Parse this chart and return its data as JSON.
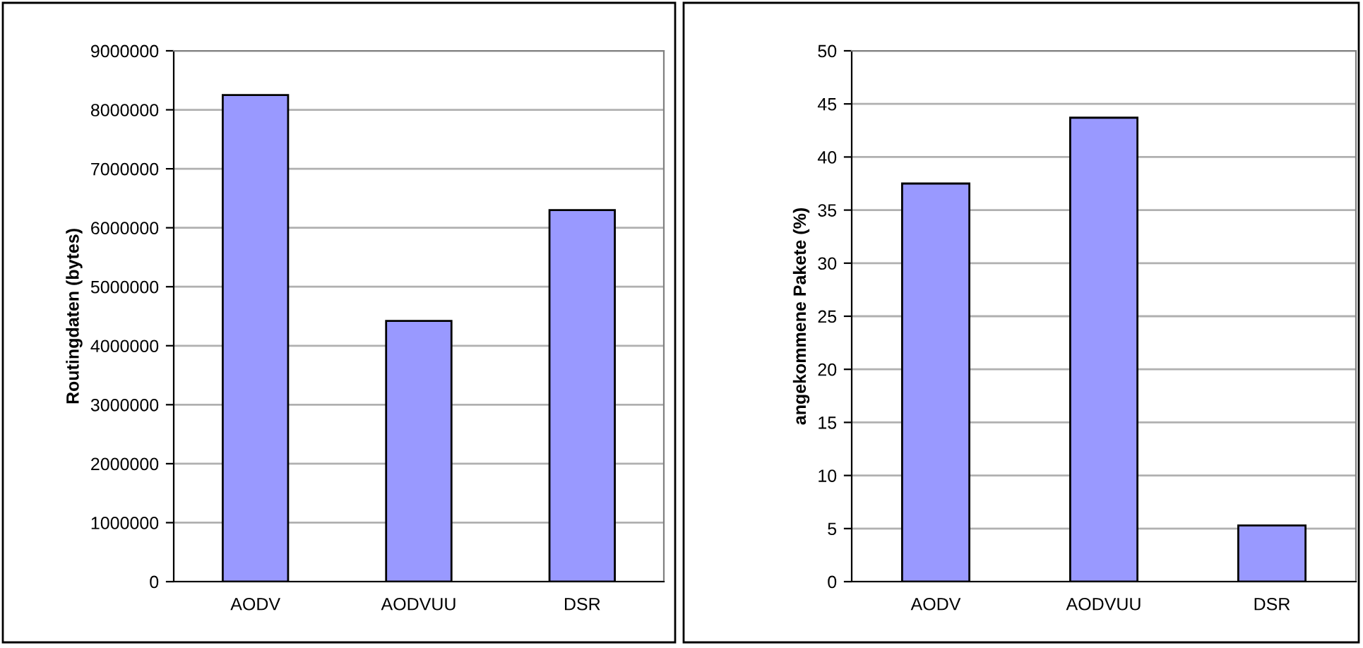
{
  "chart_data": [
    {
      "type": "bar",
      "ylabel": "Routingdaten (bytes)",
      "categories": [
        "AODV",
        "AODVUU",
        "DSR"
      ],
      "values": [
        8250000,
        4420000,
        6300000
      ],
      "color": "#9999ff",
      "ylim": [
        0,
        9000000
      ],
      "yticks": [
        0,
        1000000,
        2000000,
        3000000,
        4000000,
        5000000,
        6000000,
        7000000,
        8000000,
        9000000
      ],
      "grid": "y"
    },
    {
      "type": "bar",
      "ylabel": "angekommene Pakete (%)",
      "categories": [
        "AODV",
        "AODVUU",
        "DSR"
      ],
      "values": [
        37.5,
        43.7,
        5.3
      ],
      "color": "#9999ff",
      "ylim": [
        0,
        50
      ],
      "yticks": [
        0,
        5,
        10,
        15,
        20,
        25,
        30,
        35,
        40,
        45,
        50
      ],
      "grid": "y"
    }
  ]
}
